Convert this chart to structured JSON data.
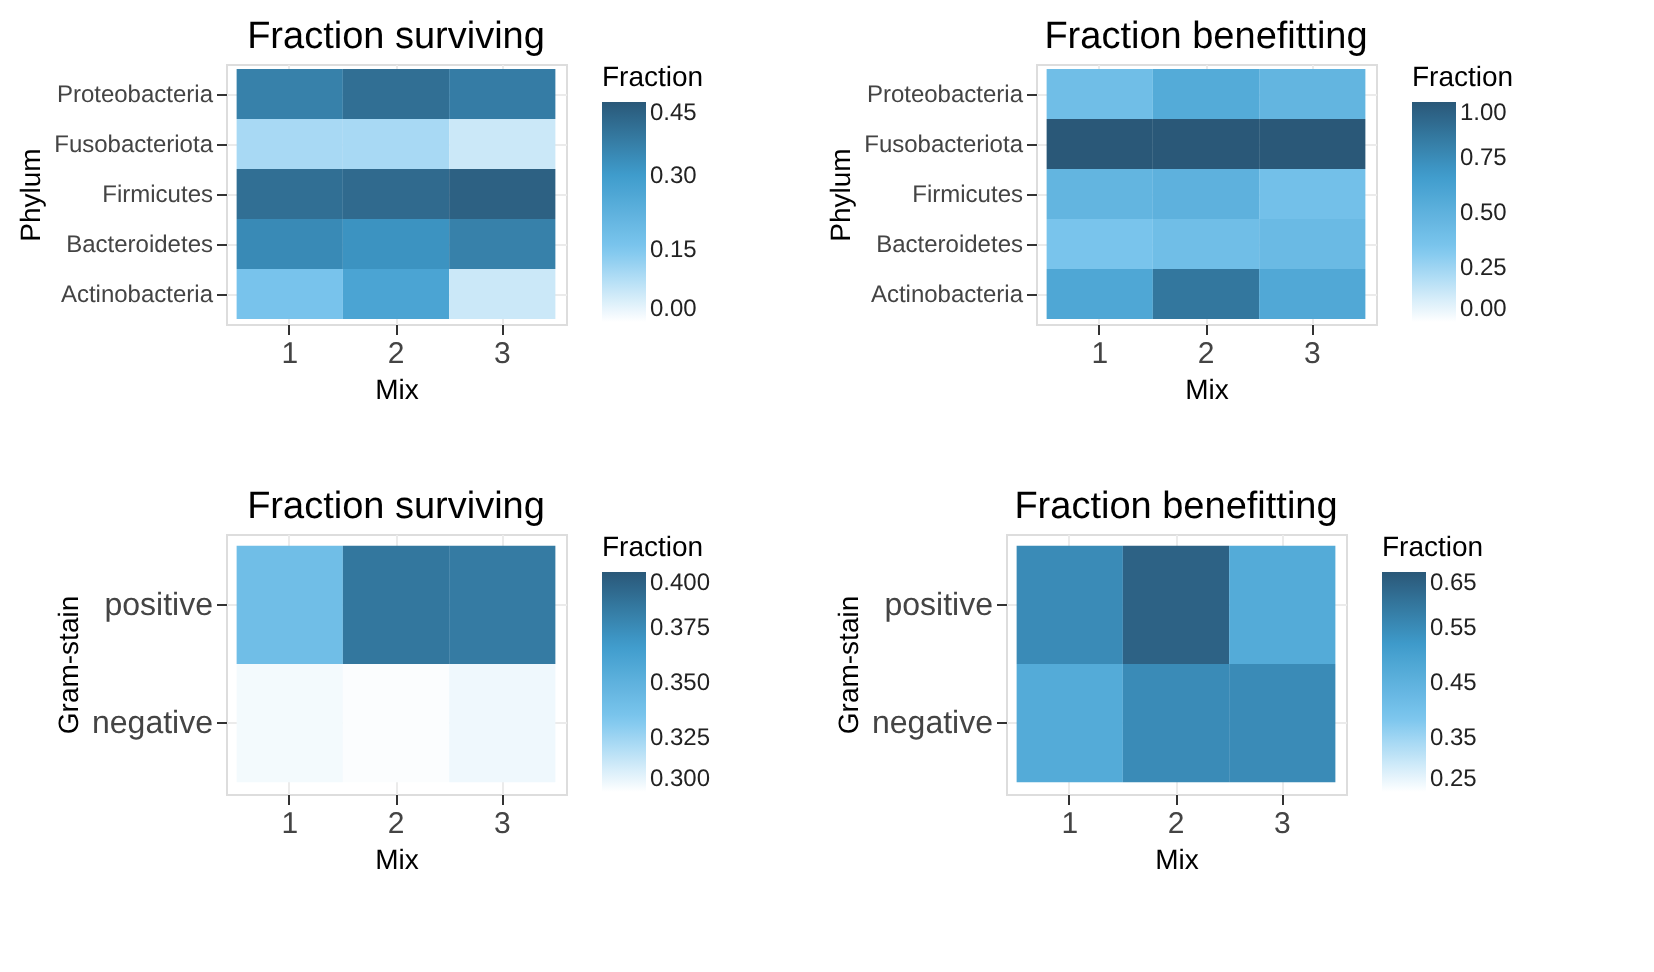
{
  "chart_data": [
    {
      "type": "heatmap",
      "title": "Fraction surviving",
      "xlabel": "Mix",
      "ylabel": "Phylum",
      "legend_title": "Fraction",
      "grid": true,
      "categories": [
        "1",
        "2",
        "3"
      ],
      "y_categories": [
        "Proteobacteria",
        "Fusobacteriota",
        "Firmicutes",
        "Bacteroidetes",
        "Actinobacteria"
      ],
      "cells": [
        [
          0.36,
          0.4,
          0.37
        ],
        [
          0.1,
          0.1,
          0.06
        ],
        [
          0.4,
          0.41,
          0.43
        ],
        [
          0.34,
          0.32,
          0.36
        ],
        [
          0.16,
          0.27,
          0.06
        ]
      ],
      "clim": [
        0,
        0.45
      ],
      "cticks": [
        {
          "value": 0,
          "label": "0.00"
        },
        {
          "value": 0.15,
          "label": "0.15"
        },
        {
          "value": 0.3,
          "label": "0.30"
        },
        {
          "value": 0.45,
          "label": "0.45"
        }
      ]
    },
    {
      "type": "heatmap",
      "title": "Fraction benefitting",
      "xlabel": "Mix",
      "ylabel": "Phylum",
      "legend_title": "Fraction",
      "grid": true,
      "categories": [
        "1",
        "2",
        "3"
      ],
      "y_categories": [
        "Proteobacteria",
        "Fusobacteriota",
        "Firmicutes",
        "Bacteroidetes",
        "Actinobacteria"
      ],
      "cells": [
        [
          0.4,
          0.55,
          0.47
        ],
        [
          1.0,
          1.0,
          1.0
        ],
        [
          0.47,
          0.5,
          0.38
        ],
        [
          0.35,
          0.4,
          0.43
        ],
        [
          0.58,
          0.85,
          0.57
        ]
      ],
      "clim": [
        0,
        1
      ],
      "cticks": [
        {
          "value": 0,
          "label": "0.00"
        },
        {
          "value": 0.25,
          "label": "0.25"
        },
        {
          "value": 0.5,
          "label": "0.50"
        },
        {
          "value": 0.75,
          "label": "0.75"
        },
        {
          "value": 1,
          "label": "1.00"
        }
      ]
    },
    {
      "type": "heatmap",
      "title": "Fraction surviving",
      "xlabel": "Mix",
      "ylabel": "Gram-stain",
      "legend_title": "Fraction",
      "grid": true,
      "categories": [
        "1",
        "2",
        "3"
      ],
      "y_categories": [
        "positive",
        "negative"
      ],
      "cells": [
        [
          0.34,
          0.385,
          0.383
        ],
        [
          0.303,
          0.301,
          0.304
        ]
      ],
      "clim": [
        0.3,
        0.4
      ],
      "cticks": [
        {
          "value": 0.3,
          "label": "0.300"
        },
        0.325,
        {
          "value": 0.35,
          "label": "0.350"
        },
        0.375,
        {
          "value": 0.4,
          "label": "0.400"
        }
      ]
    },
    {
      "type": "heatmap",
      "title": "Fraction benefitting",
      "xlabel": "Mix",
      "ylabel": "Gram-stain",
      "legend_title": "Fraction",
      "grid": true,
      "categories": [
        "1",
        "2",
        "3"
      ],
      "y_categories": [
        "positive",
        "negative"
      ],
      "cells": [
        [
          0.55,
          0.63,
          0.47
        ],
        [
          0.47,
          0.55,
          0.55
        ]
      ],
      "clim": [
        0.25,
        0.65
      ],
      "cticks": [
        0.25,
        0.35,
        0.45,
        0.55,
        0.65
      ]
    }
  ]
}
